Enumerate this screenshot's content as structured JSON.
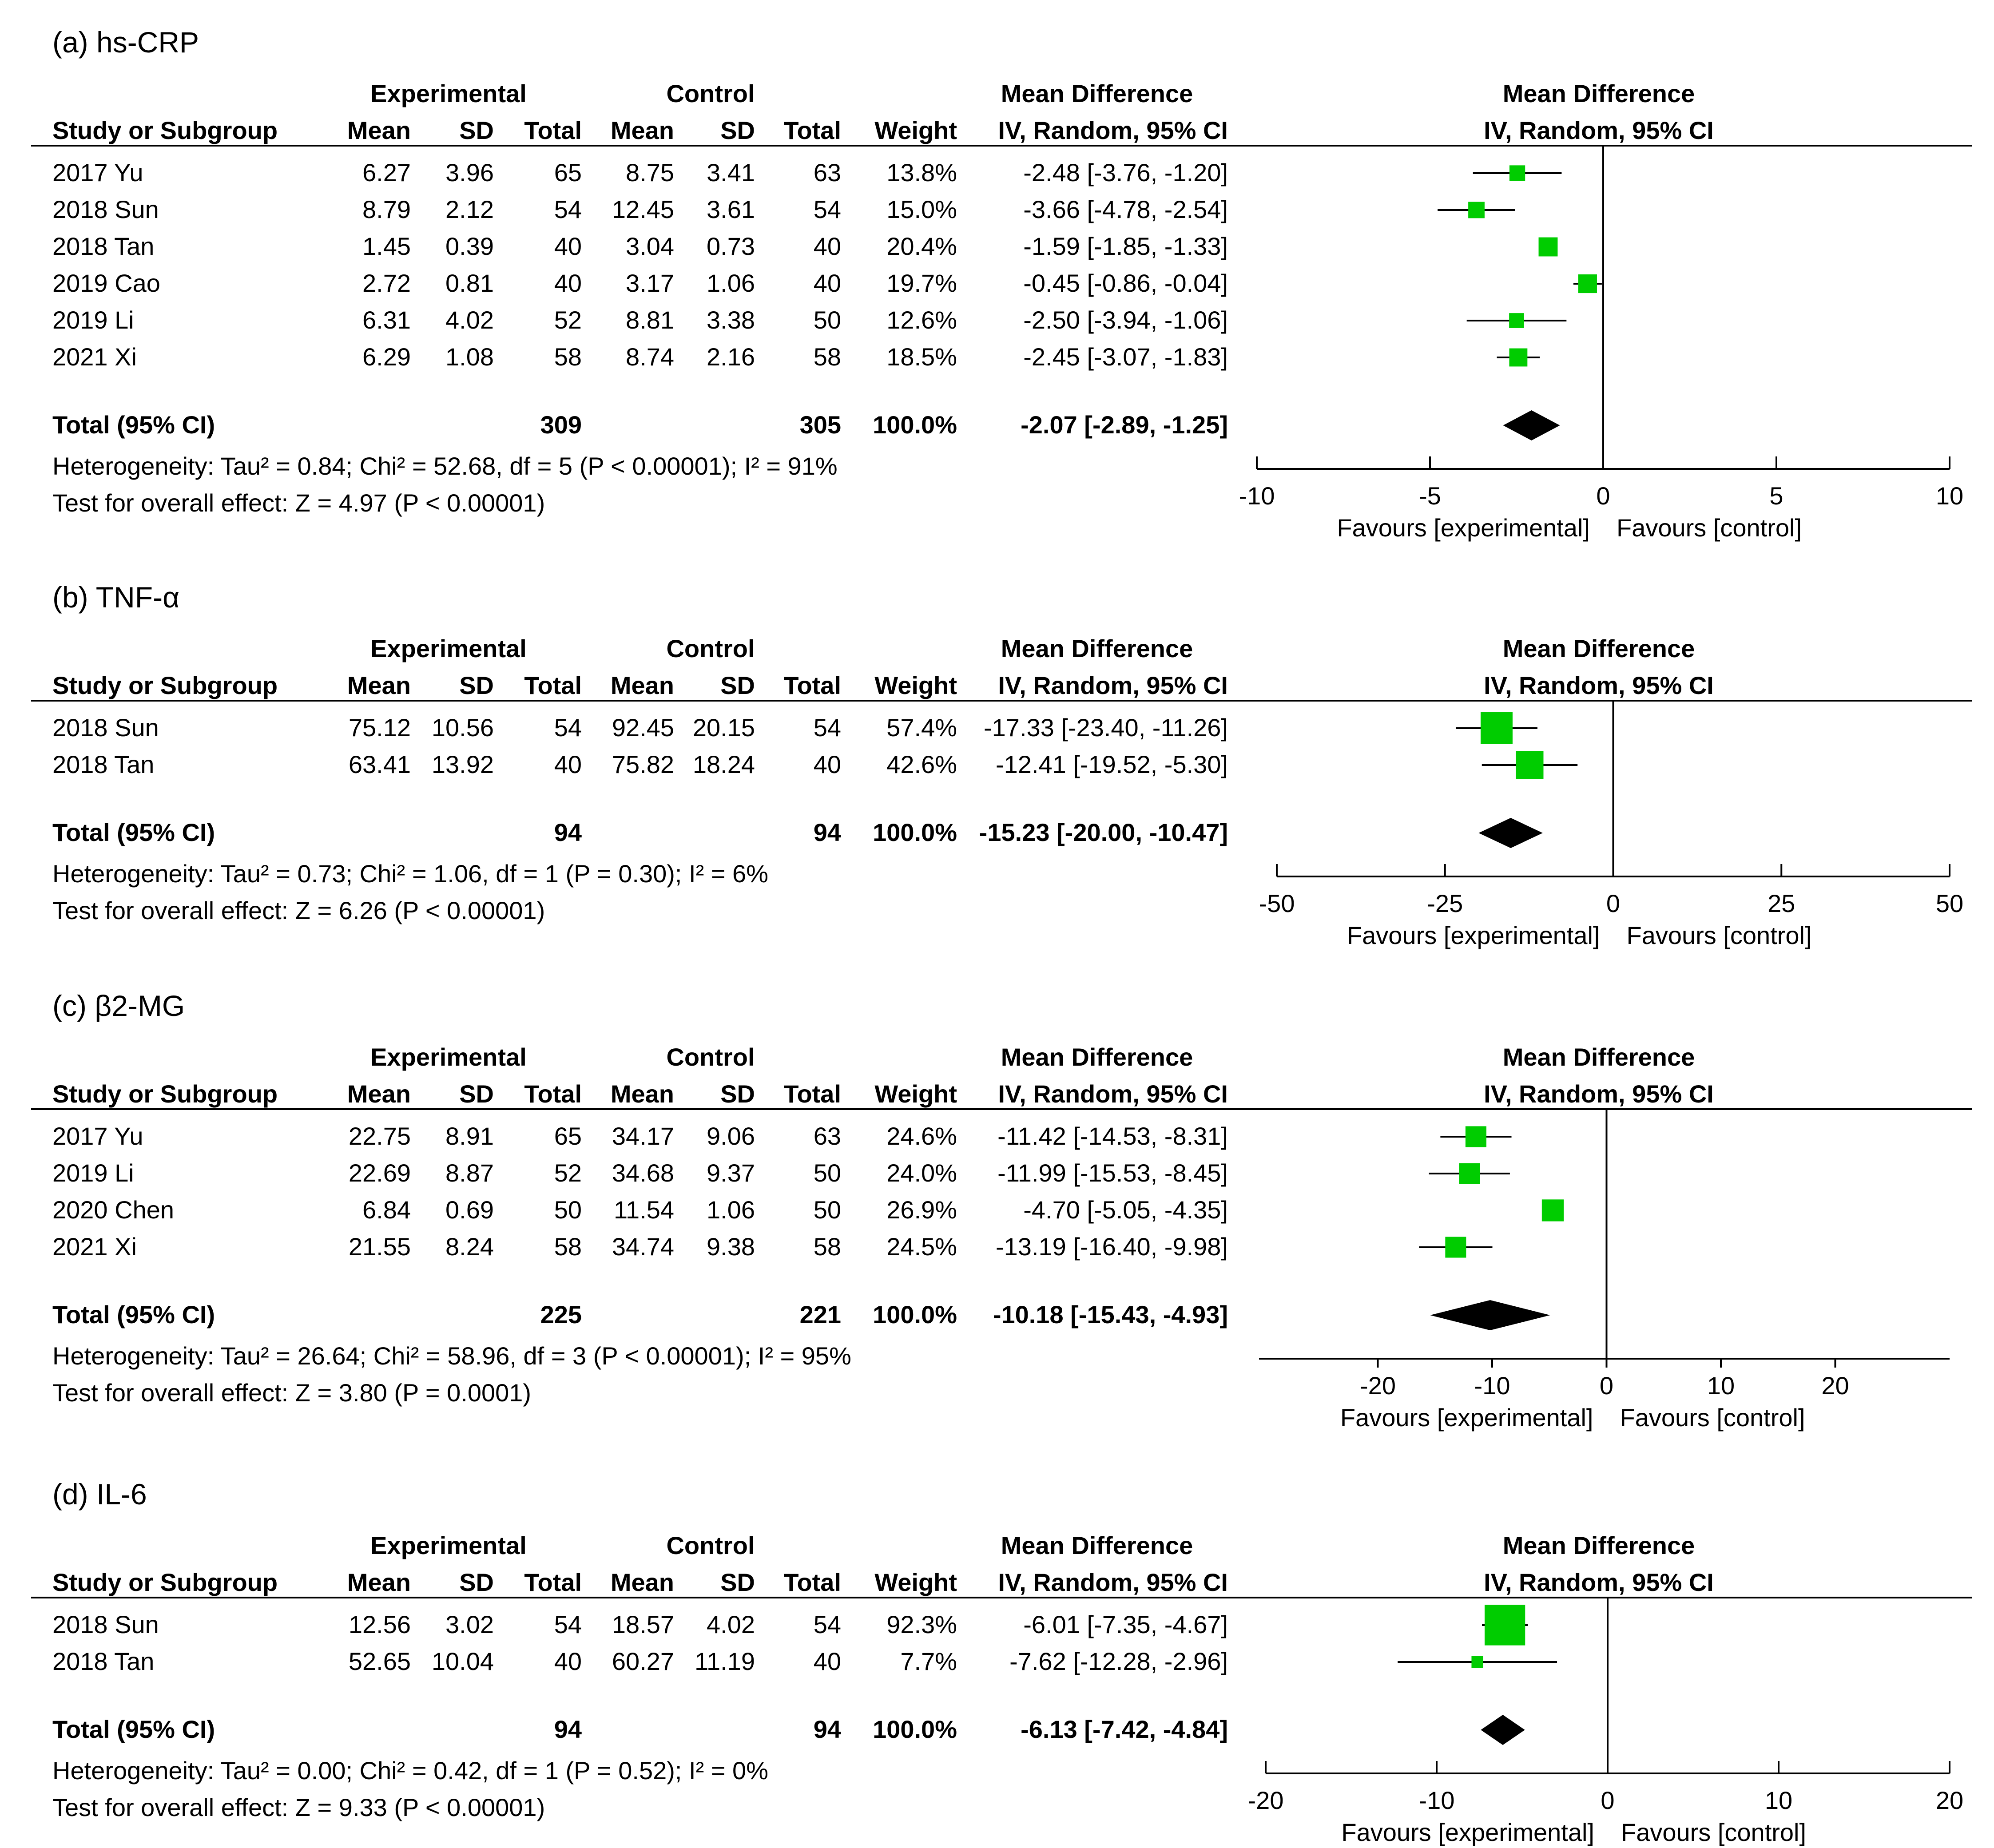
{
  "header_labels": {
    "experimental": "Experimental",
    "control": "Control",
    "mean_difference": "Mean Difference",
    "study": "Study or Subgroup",
    "mean": "Mean",
    "sd": "SD",
    "total": "Total",
    "weight": "Weight",
    "method": "IV, Random, 95% CI",
    "favours_experimental": "Favours [experimental]",
    "favours_control": "Favours [control]"
  },
  "colors": {
    "marker": "#00cc00",
    "text": "#000000",
    "background": "#ffffff"
  },
  "chart_data": [
    {
      "type": "forest",
      "title": "(a) hs-CRP",
      "studies": [
        {
          "name": "2017 Yu",
          "exp_mean": "6.27",
          "exp_sd": "3.96",
          "exp_total": "65",
          "ctl_mean": "8.75",
          "ctl_sd": "3.41",
          "ctl_total": "63",
          "weight": "13.8%",
          "ci_text": "-2.48 [-3.76, -1.20]",
          "md": -2.48,
          "lo": -3.76,
          "hi": -1.2,
          "w": 13.8
        },
        {
          "name": "2018 Sun",
          "exp_mean": "8.79",
          "exp_sd": "2.12",
          "exp_total": "54",
          "ctl_mean": "12.45",
          "ctl_sd": "3.61",
          "ctl_total": "54",
          "weight": "15.0%",
          "ci_text": "-3.66 [-4.78, -2.54]",
          "md": -3.66,
          "lo": -4.78,
          "hi": -2.54,
          "w": 15.0
        },
        {
          "name": "2018 Tan",
          "exp_mean": "1.45",
          "exp_sd": "0.39",
          "exp_total": "40",
          "ctl_mean": "3.04",
          "ctl_sd": "0.73",
          "ctl_total": "40",
          "weight": "20.4%",
          "ci_text": "-1.59 [-1.85, -1.33]",
          "md": -1.59,
          "lo": -1.85,
          "hi": -1.33,
          "w": 20.4
        },
        {
          "name": "2019 Cao",
          "exp_mean": "2.72",
          "exp_sd": "0.81",
          "exp_total": "40",
          "ctl_mean": "3.17",
          "ctl_sd": "1.06",
          "ctl_total": "40",
          "weight": "19.7%",
          "ci_text": "-0.45 [-0.86, -0.04]",
          "md": -0.45,
          "lo": -0.86,
          "hi": -0.04,
          "w": 19.7
        },
        {
          "name": "2019 Li",
          "exp_mean": "6.31",
          "exp_sd": "4.02",
          "exp_total": "52",
          "ctl_mean": "8.81",
          "ctl_sd": "3.38",
          "ctl_total": "50",
          "weight": "12.6%",
          "ci_text": "-2.50 [-3.94, -1.06]",
          "md": -2.5,
          "lo": -3.94,
          "hi": -1.06,
          "w": 12.6
        },
        {
          "name": "2021 Xi",
          "exp_mean": "6.29",
          "exp_sd": "1.08",
          "exp_total": "58",
          "ctl_mean": "8.74",
          "ctl_sd": "2.16",
          "ctl_total": "58",
          "weight": "18.5%",
          "ci_text": "-2.45 [-3.07, -1.83]",
          "md": -2.45,
          "lo": -3.07,
          "hi": -1.83,
          "w": 18.5
        }
      ],
      "total": {
        "label": "Total (95% CI)",
        "exp_total": "309",
        "ctl_total": "305",
        "weight": "100.0%",
        "ci_text": "-2.07 [-2.89, -1.25]",
        "md": -2.07,
        "lo": -2.89,
        "hi": -1.25
      },
      "heterogeneity": "Heterogeneity: Tau² = 0.84; Chi² = 52.68, df = 5 (P < 0.00001); I² = 91%",
      "overall_effect": "Test for overall effect: Z = 4.97 (P < 0.00001)",
      "xlim": [
        -10,
        10
      ],
      "ticks": [
        -10,
        -5,
        0,
        5,
        10
      ]
    },
    {
      "type": "forest",
      "title": "(b) TNF-α",
      "studies": [
        {
          "name": "2018 Sun",
          "exp_mean": "75.12",
          "exp_sd": "10.56",
          "exp_total": "54",
          "ctl_mean": "92.45",
          "ctl_sd": "20.15",
          "ctl_total": "54",
          "weight": "57.4%",
          "ci_text": "-17.33 [-23.40, -11.26]",
          "md": -17.33,
          "lo": -23.4,
          "hi": -11.26,
          "w": 57.4
        },
        {
          "name": "2018 Tan",
          "exp_mean": "63.41",
          "exp_sd": "13.92",
          "exp_total": "40",
          "ctl_mean": "75.82",
          "ctl_sd": "18.24",
          "ctl_total": "40",
          "weight": "42.6%",
          "ci_text": "-12.41 [-19.52, -5.30]",
          "md": -12.41,
          "lo": -19.52,
          "hi": -5.3,
          "w": 42.6
        }
      ],
      "total": {
        "label": "Total (95% CI)",
        "exp_total": "94",
        "ctl_total": "94",
        "weight": "100.0%",
        "ci_text": "-15.23 [-20.00, -10.47]",
        "md": -15.23,
        "lo": -20.0,
        "hi": -10.47
      },
      "heterogeneity": "Heterogeneity: Tau² = 0.73; Chi² = 1.06, df = 1 (P = 0.30); I² = 6%",
      "overall_effect": "Test for overall effect: Z = 6.26 (P < 0.00001)",
      "xlim": [
        -50,
        50
      ],
      "ticks": [
        -50,
        -25,
        0,
        25,
        50
      ]
    },
    {
      "type": "forest",
      "title": "(c) β2-MG",
      "studies": [
        {
          "name": "2017 Yu",
          "exp_mean": "22.75",
          "exp_sd": "8.91",
          "exp_total": "65",
          "ctl_mean": "34.17",
          "ctl_sd": "9.06",
          "ctl_total": "63",
          "weight": "24.6%",
          "ci_text": "-11.42 [-14.53, -8.31]",
          "md": -11.42,
          "lo": -14.53,
          "hi": -8.31,
          "w": 24.6
        },
        {
          "name": "2019 Li",
          "exp_mean": "22.69",
          "exp_sd": "8.87",
          "exp_total": "52",
          "ctl_mean": "34.68",
          "ctl_sd": "9.37",
          "ctl_total": "50",
          "weight": "24.0%",
          "ci_text": "-11.99 [-15.53, -8.45]",
          "md": -11.99,
          "lo": -15.53,
          "hi": -8.45,
          "w": 24.0
        },
        {
          "name": "2020 Chen",
          "exp_mean": "6.84",
          "exp_sd": "0.69",
          "exp_total": "50",
          "ctl_mean": "11.54",
          "ctl_sd": "1.06",
          "ctl_total": "50",
          "weight": "26.9%",
          "ci_text": "-4.70 [-5.05, -4.35]",
          "md": -4.7,
          "lo": -5.05,
          "hi": -4.35,
          "w": 26.9
        },
        {
          "name": "2021 Xi",
          "exp_mean": "21.55",
          "exp_sd": "8.24",
          "exp_total": "58",
          "ctl_mean": "34.74",
          "ctl_sd": "9.38",
          "ctl_total": "58",
          "weight": "24.5%",
          "ci_text": "-13.19 [-16.40, -9.98]",
          "md": -13.19,
          "lo": -16.4,
          "hi": -9.98,
          "w": 24.5
        }
      ],
      "total": {
        "label": "Total (95% CI)",
        "exp_total": "225",
        "ctl_total": "221",
        "weight": "100.0%",
        "ci_text": "-10.18 [-15.43, -4.93]",
        "md": -10.18,
        "lo": -15.43,
        "hi": -4.93
      },
      "heterogeneity": "Heterogeneity: Tau² = 26.64; Chi² = 58.96, df = 3 (P < 0.00001); I² = 95%",
      "overall_effect": "Test for overall effect: Z = 3.80 (P = 0.0001)",
      "xlim": [
        -30,
        30
      ],
      "ticks": [
        -20,
        -10,
        0,
        10,
        20
      ]
    },
    {
      "type": "forest",
      "title": "(d) IL-6",
      "studies": [
        {
          "name": "2018 Sun",
          "exp_mean": "12.56",
          "exp_sd": "3.02",
          "exp_total": "54",
          "ctl_mean": "18.57",
          "ctl_sd": "4.02",
          "ctl_total": "54",
          "weight": "92.3%",
          "ci_text": "-6.01 [-7.35, -4.67]",
          "md": -6.01,
          "lo": -7.35,
          "hi": -4.67,
          "w": 92.3
        },
        {
          "name": "2018 Tan",
          "exp_mean": "52.65",
          "exp_sd": "10.04",
          "exp_total": "40",
          "ctl_mean": "60.27",
          "ctl_sd": "11.19",
          "ctl_total": "40",
          "weight": "7.7%",
          "ci_text": "-7.62 [-12.28, -2.96]",
          "md": -7.62,
          "lo": -12.28,
          "hi": -2.96,
          "w": 7.7
        }
      ],
      "total": {
        "label": "Total (95% CI)",
        "exp_total": "94",
        "ctl_total": "94",
        "weight": "100.0%",
        "ci_text": "-6.13 [-7.42, -4.84]",
        "md": -6.13,
        "lo": -7.42,
        "hi": -4.84
      },
      "heterogeneity": "Heterogeneity: Tau² = 0.00; Chi² = 0.42, df = 1 (P = 0.52); I² = 0%",
      "overall_effect": "Test for overall effect: Z = 9.33 (P < 0.00001)",
      "xlim": [
        -20,
        20
      ],
      "ticks": [
        -20,
        -10,
        0,
        10,
        20
      ]
    }
  ]
}
